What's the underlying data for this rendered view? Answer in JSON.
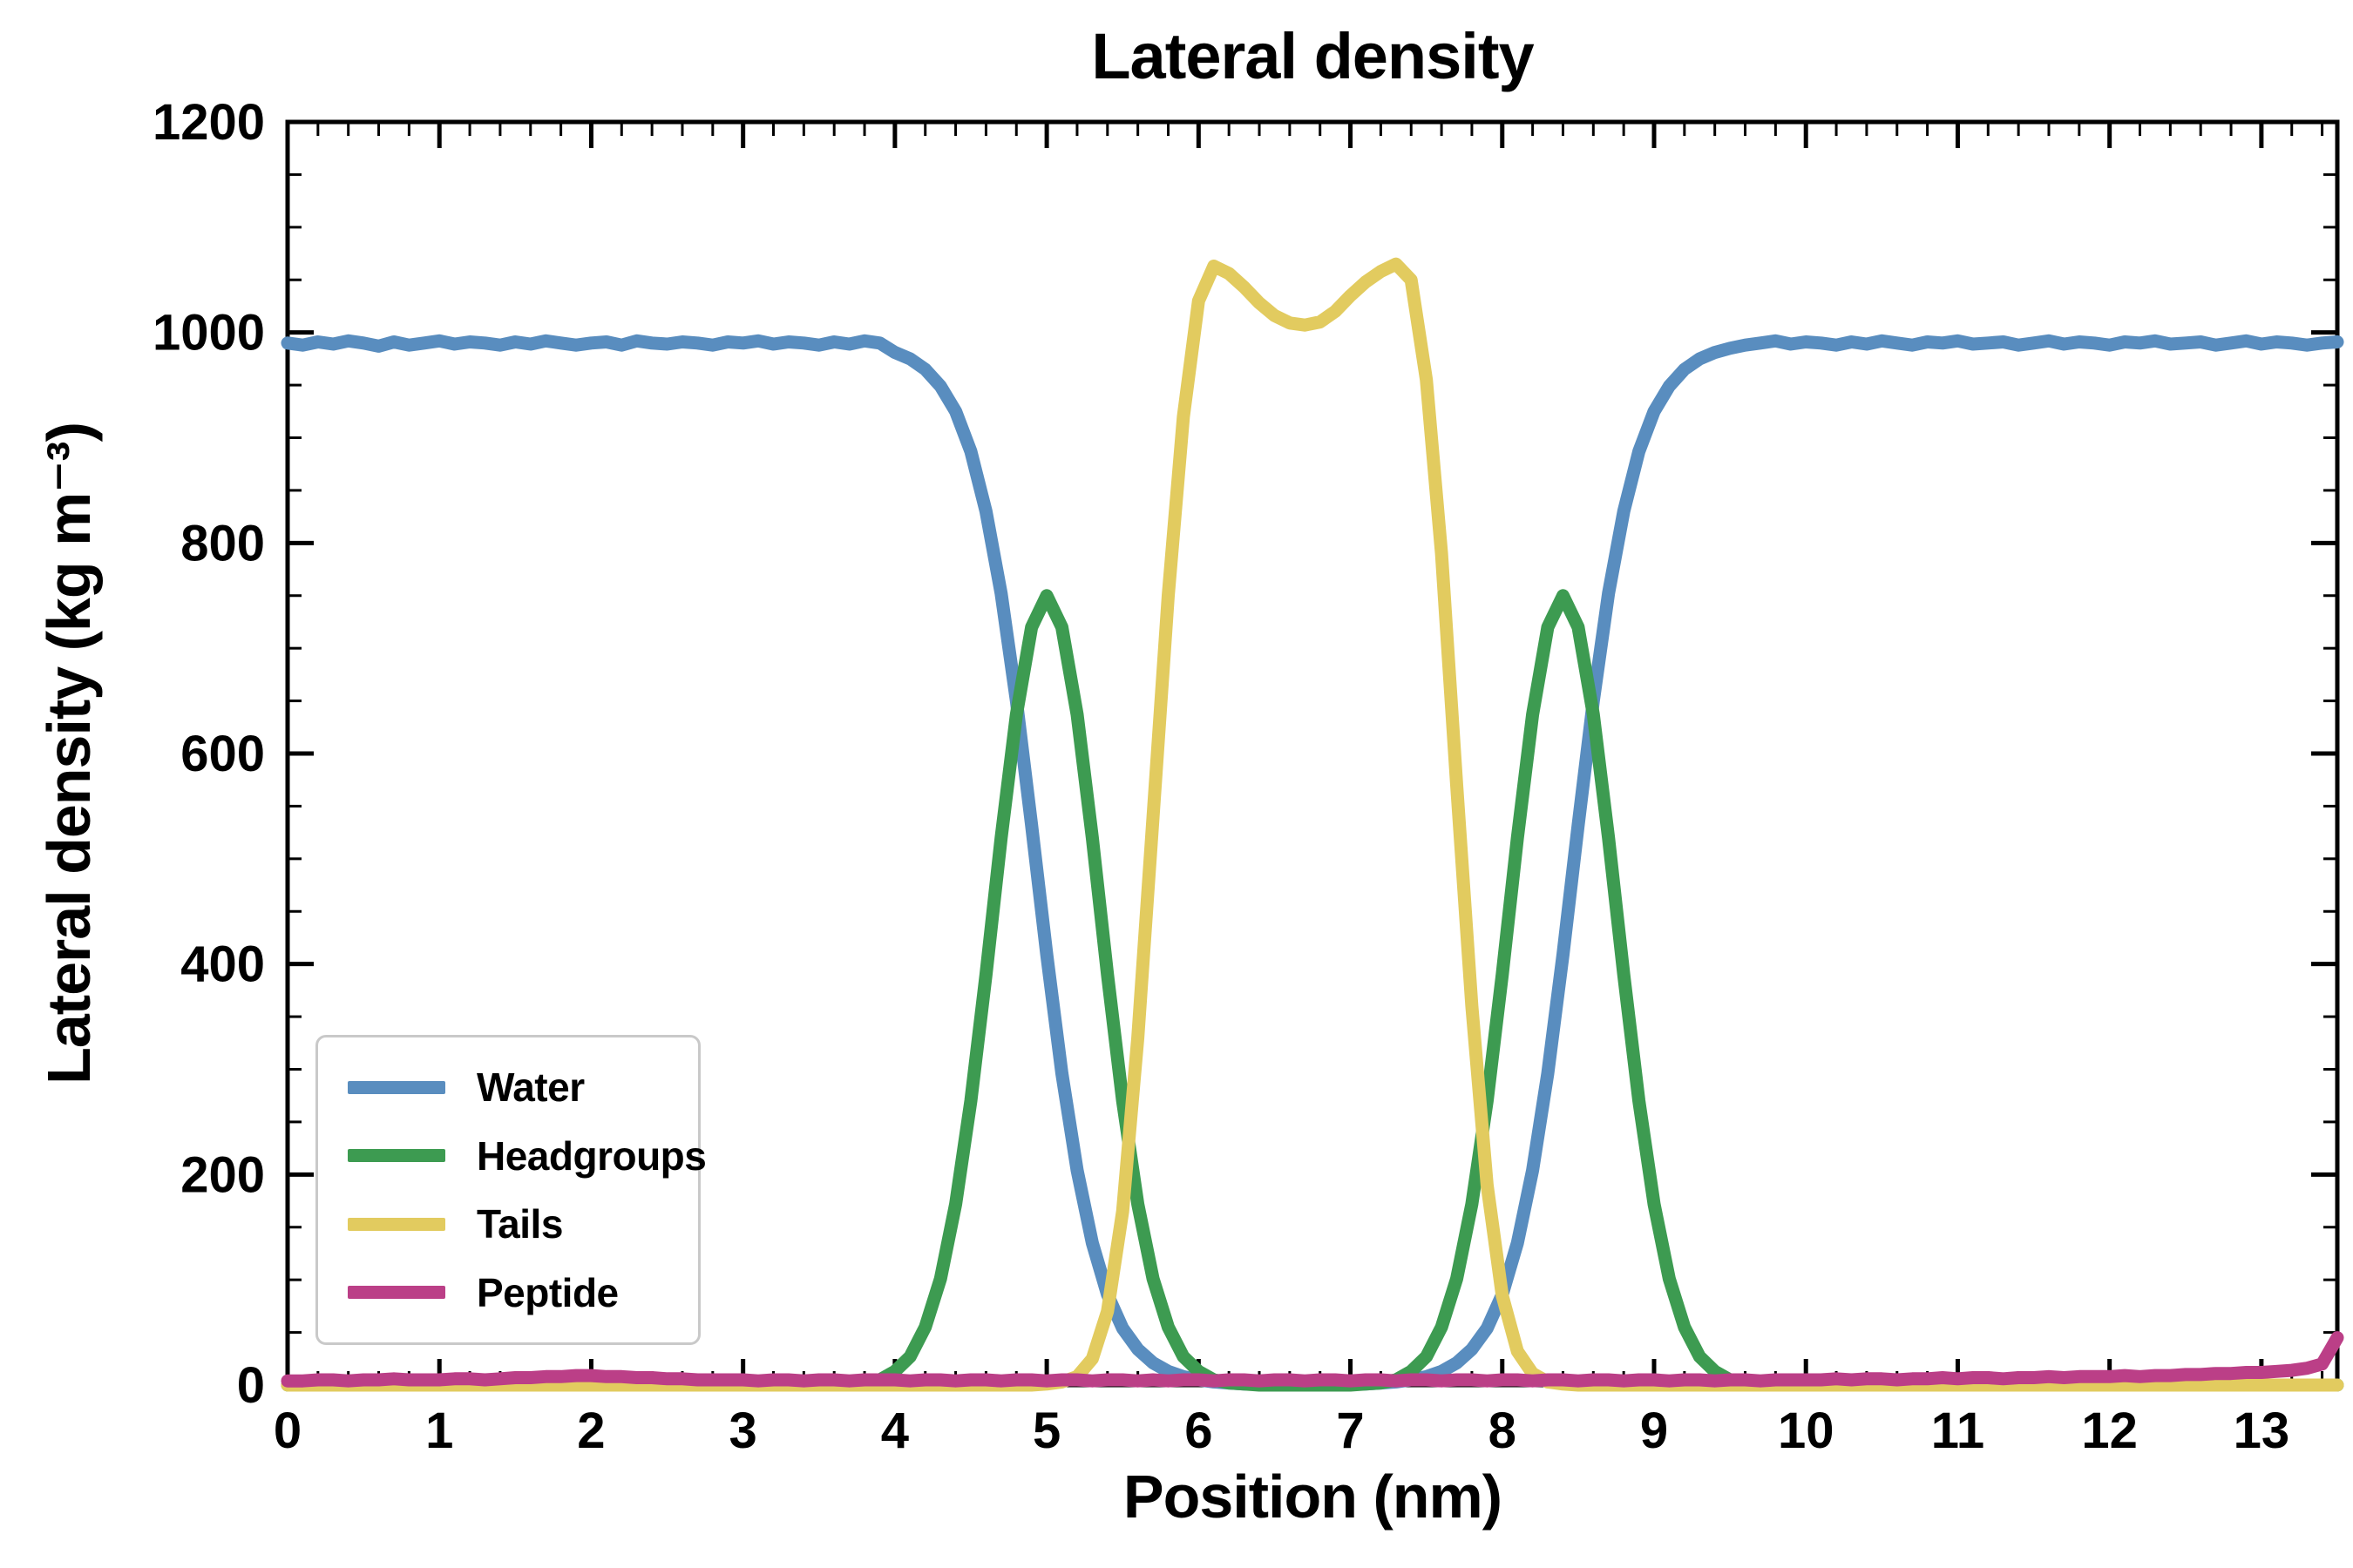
{
  "chart_data": {
    "type": "line",
    "title": "Lateral density",
    "xlabel": "Position (nm)",
    "ylabel": "Lateral density (kg m⁻³)",
    "xlim": [
      0,
      13.5
    ],
    "ylim": [
      0,
      1200
    ],
    "x_ticks": [
      0,
      1,
      2,
      3,
      4,
      5,
      6,
      7,
      8,
      9,
      10,
      11,
      12,
      13
    ],
    "y_ticks": [
      0,
      200,
      400,
      600,
      800,
      1000,
      1200
    ],
    "x_minor_step": 0.2,
    "y_minor_step": 50,
    "grid": false,
    "legend_position": "lower left",
    "x": [
      0,
      0.1,
      0.2,
      0.3,
      0.4,
      0.5,
      0.6,
      0.7,
      0.8,
      0.9,
      1,
      1.1,
      1.2,
      1.3,
      1.4,
      1.5,
      1.6,
      1.7,
      1.8,
      1.9,
      2,
      2.1,
      2.2,
      2.3,
      2.4,
      2.5,
      2.6,
      2.7,
      2.8,
      2.9,
      3,
      3.1,
      3.2,
      3.3,
      3.4,
      3.5,
      3.6,
      3.7,
      3.8,
      3.9,
      4,
      4.1,
      4.2,
      4.3,
      4.4,
      4.5,
      4.6,
      4.7,
      4.8,
      4.9,
      5,
      5.1,
      5.2,
      5.3,
      5.4,
      5.5,
      5.6,
      5.7,
      5.8,
      5.9,
      6,
      6.1,
      6.2,
      6.3,
      6.4,
      6.5,
      6.6,
      6.7,
      6.8,
      6.9,
      7,
      7.1,
      7.2,
      7.3,
      7.4,
      7.5,
      7.6,
      7.7,
      7.8,
      7.9,
      8,
      8.1,
      8.2,
      8.3,
      8.4,
      8.5,
      8.6,
      8.7,
      8.8,
      8.9,
      9,
      9.1,
      9.2,
      9.3,
      9.4,
      9.5,
      9.6,
      9.7,
      9.8,
      9.9,
      10,
      10.1,
      10.2,
      10.3,
      10.4,
      10.5,
      10.6,
      10.7,
      10.8,
      10.9,
      11,
      11.1,
      11.2,
      11.3,
      11.4,
      11.5,
      11.6,
      11.7,
      11.8,
      11.9,
      12,
      12.1,
      12.2,
      12.3,
      12.4,
      12.5,
      12.6,
      12.7,
      12.8,
      12.9,
      13,
      13.1,
      13.2,
      13.3,
      13.4,
      13.5
    ],
    "series": [
      {
        "name": "Water",
        "color": "#598dbf",
        "values": [
          990,
          988,
          991,
          989,
          992,
          990,
          987,
          991,
          988,
          990,
          992,
          989,
          991,
          990,
          988,
          991,
          989,
          992,
          990,
          988,
          990,
          991,
          988,
          992,
          990,
          989,
          991,
          990,
          988,
          991,
          990,
          992,
          989,
          991,
          990,
          988,
          991,
          989,
          992,
          990,
          981,
          975,
          965,
          949,
          925,
          887,
          830,
          752,
          650,
          532,
          409,
          296,
          204,
          135,
          86,
          54,
          34,
          21,
          13,
          8,
          5,
          3,
          2,
          1,
          1,
          0,
          0,
          0,
          0,
          0,
          1,
          1,
          2,
          3,
          5,
          8,
          13,
          21,
          34,
          54,
          86,
          135,
          204,
          296,
          409,
          532,
          650,
          752,
          830,
          887,
          925,
          949,
          965,
          975,
          981,
          985,
          988,
          990,
          992,
          989,
          991,
          990,
          988,
          991,
          989,
          992,
          990,
          988,
          991,
          990,
          992,
          989,
          990,
          991,
          988,
          990,
          992,
          989,
          991,
          990,
          988,
          991,
          990,
          992,
          989,
          990,
          991,
          988,
          990,
          992,
          989,
          991,
          990,
          988,
          990,
          991
        ]
      },
      {
        "name": "Headgroups",
        "color": "#3d9b51",
        "values": [
          0,
          0,
          0,
          0,
          0,
          0,
          0,
          0,
          0,
          0,
          0,
          0,
          0,
          0,
          0,
          0,
          0,
          0,
          0,
          0,
          0,
          0,
          0,
          0,
          0,
          0,
          0,
          0,
          0,
          0,
          0,
          0,
          0,
          0,
          0,
          0,
          0,
          0,
          2,
          5,
          13,
          27,
          55,
          101,
          172,
          270,
          390,
          520,
          637,
          720,
          750,
          720,
          637,
          520,
          390,
          270,
          172,
          101,
          55,
          27,
          13,
          5,
          2,
          1,
          0,
          0,
          0,
          0,
          0,
          0,
          0,
          1,
          2,
          5,
          13,
          27,
          55,
          101,
          172,
          270,
          390,
          520,
          637,
          720,
          750,
          720,
          637,
          520,
          390,
          270,
          172,
          101,
          55,
          27,
          13,
          5,
          2,
          1,
          0,
          0,
          0,
          0,
          0,
          0,
          0,
          0,
          0,
          0,
          0,
          0,
          0,
          0,
          0,
          0,
          0,
          0,
          0,
          0,
          0,
          0,
          0,
          0,
          0,
          0,
          0,
          0,
          0,
          0,
          0,
          0,
          0,
          0,
          0,
          0,
          0,
          0
        ]
      },
      {
        "name": "Tails",
        "color": "#e2cb5f",
        "values": [
          0,
          0,
          0,
          0,
          0,
          0,
          0,
          0,
          0,
          0,
          0,
          0,
          0,
          0,
          0,
          0,
          0,
          0,
          0,
          0,
          0,
          0,
          0,
          0,
          0,
          0,
          0,
          0,
          0,
          0,
          0,
          0,
          0,
          0,
          0,
          0,
          0,
          0,
          0,
          0,
          0,
          0,
          0,
          0,
          0,
          0,
          0,
          0,
          0,
          0,
          1,
          3,
          8,
          25,
          70,
          165,
          330,
          540,
          750,
          920,
          1030,
          1063,
          1056,
          1043,
          1028,
          1016,
          1009,
          1007,
          1010,
          1020,
          1035,
          1048,
          1058,
          1065,
          1050,
          955,
          790,
          570,
          360,
          190,
          85,
          32,
          11,
          3,
          1,
          0,
          0,
          0,
          0,
          0,
          0,
          0,
          0,
          0,
          0,
          0,
          0,
          0,
          0,
          0,
          0,
          0,
          0,
          0,
          0,
          0,
          0,
          0,
          0,
          0,
          0,
          0,
          0,
          0,
          0,
          0,
          0,
          0,
          0,
          0,
          0,
          0,
          0,
          0,
          0,
          0,
          0,
          0,
          0,
          0,
          0,
          0,
          0,
          0,
          0,
          0
        ]
      },
      {
        "name": "Peptide",
        "color": "#bb3f87",
        "values": [
          4,
          4,
          5,
          5,
          4,
          5,
          5,
          6,
          5,
          5,
          5,
          6,
          6,
          5,
          6,
          7,
          7,
          8,
          8,
          9,
          9,
          8,
          8,
          7,
          7,
          6,
          6,
          5,
          5,
          5,
          5,
          4,
          5,
          5,
          4,
          5,
          5,
          4,
          5,
          5,
          5,
          4,
          5,
          5,
          4,
          5,
          5,
          4,
          5,
          5,
          4,
          5,
          5,
          4,
          5,
          5,
          4,
          5,
          4,
          5,
          5,
          4,
          5,
          5,
          4,
          5,
          5,
          4,
          5,
          5,
          4,
          5,
          5,
          4,
          5,
          5,
          4,
          5,
          5,
          4,
          5,
          5,
          4,
          5,
          5,
          4,
          5,
          5,
          4,
          5,
          5,
          4,
          5,
          5,
          4,
          5,
          5,
          4,
          5,
          5,
          5,
          5,
          6,
          5,
          6,
          6,
          5,
          6,
          6,
          7,
          6,
          7,
          7,
          6,
          7,
          7,
          8,
          7,
          8,
          8,
          8,
          9,
          8,
          9,
          9,
          10,
          10,
          11,
          11,
          12,
          12,
          13,
          14,
          16,
          20,
          45
        ]
      }
    ]
  }
}
